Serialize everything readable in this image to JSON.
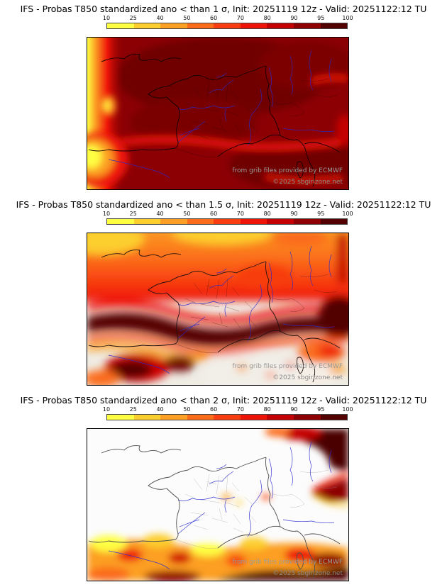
{
  "colorbar": {
    "tick_labels": [
      "10",
      "25",
      "40",
      "50",
      "60",
      "70",
      "80",
      "90",
      "95",
      "100"
    ],
    "colors": [
      "#FEFE42",
      "#FCCF2E",
      "#FC9F24",
      "#FB6C1A",
      "#F83D10",
      "#EE1408",
      "#C40204",
      "#8E0002",
      "#520000"
    ]
  },
  "panels": [
    {
      "title": "IFS - Probas T850  standardized ano < than 1 σ, Init: 20251119 12z - Valid: 20251122:12 TU",
      "watermark_line1": "from grib files provided by ECMWF",
      "watermark_line2": "©2025 sbgirizone.net"
    },
    {
      "title": "IFS - Probas T850  standardized ano < than 1.5 σ, Init: 20251119 12z - Valid: 20251122:12 TU",
      "watermark_line1": "from grib files provided by ECMWF",
      "watermark_line2": "©2025 sbgirizone.net"
    },
    {
      "title": "IFS - Probas T850  standardized ano < than 2 σ, Init: 20251119 12z - Valid: 20251122:12 TU",
      "watermark_line1": "from grib files provided by ECMWF",
      "watermark_line2": "©2025 sbgirizone.net"
    }
  ]
}
